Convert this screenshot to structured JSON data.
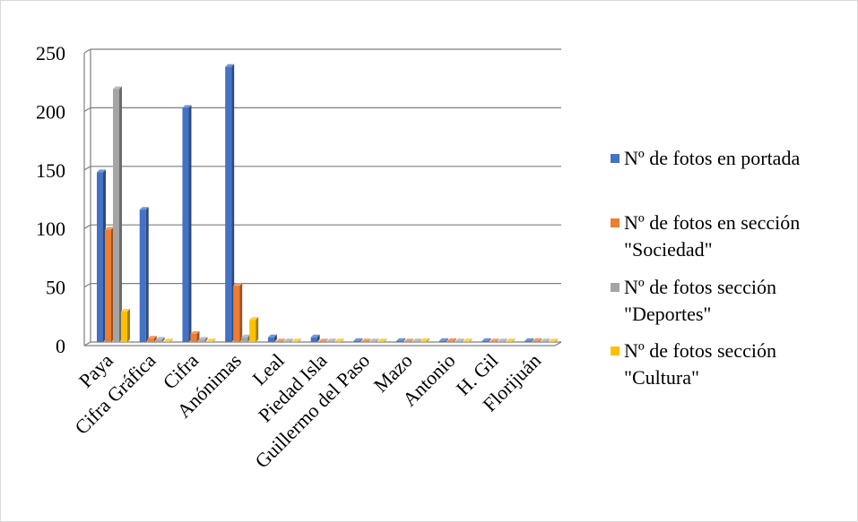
{
  "chart_data": {
    "type": "bar",
    "title": "",
    "xlabel": "",
    "ylabel": "",
    "ylim": [
      0,
      250
    ],
    "yticks": [
      0,
      50,
      100,
      150,
      200,
      250
    ],
    "grid": true,
    "legend_position": "right",
    "categories": [
      "Paya",
      "Cifra Gráfica",
      "Cifra",
      "Anónimas",
      "Leal",
      "Piedad Isla",
      "Guillermo del Paso",
      "Mazo",
      "Antonio",
      "H. Gil",
      "Florijuán"
    ],
    "series": [
      {
        "name": "Nº de fotos en portada",
        "legend_lines": [
          "Nº de fotos en portada"
        ],
        "color": "#4472C4",
        "values": [
          145,
          113,
          200,
          235,
          4,
          4,
          1,
          1,
          1,
          1,
          1
        ]
      },
      {
        "name": "Nº de fotos en sección \"Sociedad\"",
        "legend_lines": [
          "Nº de fotos en sección",
          "\"Sociedad\""
        ],
        "color": "#ED7D31",
        "values": [
          96,
          3,
          7,
          48,
          0,
          0,
          0,
          0,
          1,
          0,
          1
        ]
      },
      {
        "name": "Nº de fotos sección \"Deportes\"",
        "legend_lines": [
          "Nº de fotos sección",
          "\"Deportes\""
        ],
        "color": "#A5A5A5",
        "values": [
          216,
          2,
          2,
          4,
          0,
          0,
          0,
          0,
          0,
          0,
          0
        ]
      },
      {
        "name": "Nº de fotos sección \"Cultura\"",
        "legend_lines": [
          "Nº de fotos sección",
          "\"Cultura\""
        ],
        "color": "#FFC000",
        "values": [
          26,
          0,
          0,
          19,
          0,
          0,
          0,
          1,
          0,
          0,
          0
        ]
      }
    ]
  }
}
